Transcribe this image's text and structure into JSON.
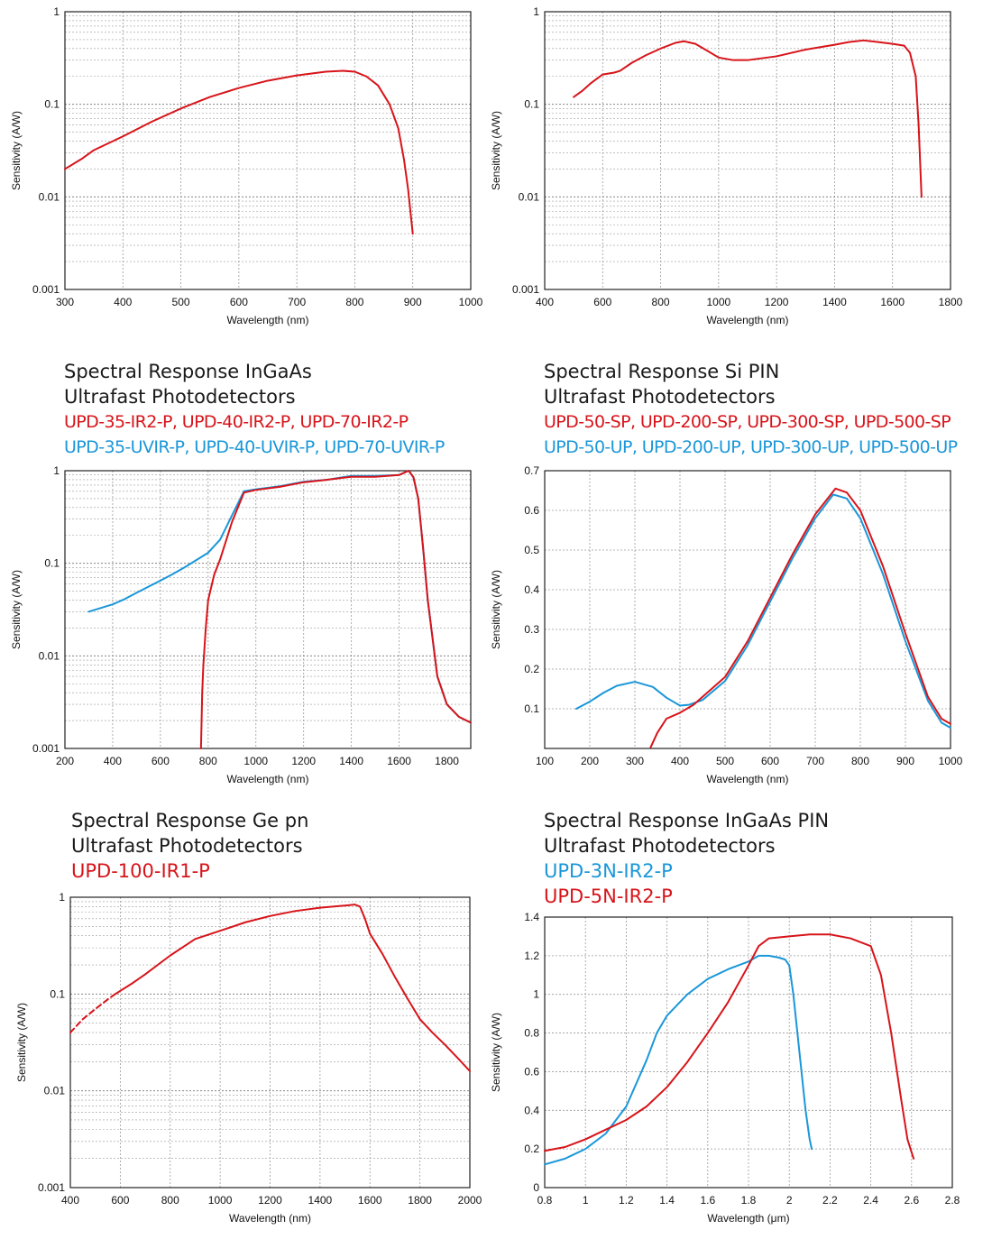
{
  "colors": {
    "red": "#d7141a",
    "blue": "#1a97d8",
    "axis": "#222222",
    "grid": "#9a9a9a"
  },
  "titles": {
    "c3": {
      "line1": "Spectral Response InGaAs",
      "line2": "Ultrafast Photodetectors",
      "red": "UPD-35-IR2-P, UPD-40-IR2-P, UPD-70-IR2-P",
      "blue": "UPD-35-UVIR-P, UPD-40-UVIR-P, UPD-70-UVIR-P"
    },
    "c4": {
      "line1": "Spectral Response Si PIN",
      "line2": "Ultrafast Photodetectors",
      "red": "UPD-50-SP, UPD-200-SP, UPD-300-SP, UPD-500-SP",
      "blue": "UPD-50-UP, UPD-200-UP, UPD-300-UP, UPD-500-UP"
    },
    "c5": {
      "line1": "Spectral Response Ge pn",
      "line2": "Ultrafast Photodetectors",
      "red": "UPD-100-IR1-P"
    },
    "c6": {
      "line1": "Spectral Response InGaAs PIN",
      "line2": "Ultrafast Photodetectors",
      "blue": "UPD-3N-IR2-P",
      "red": "UPD-5N-IR2-P"
    }
  },
  "chart_data": [
    {
      "id": "c1",
      "type": "line",
      "log_y": true,
      "title": "",
      "xlabel": "Wavelength (nm)",
      "ylabel": "Sensitivity (A/W)",
      "xlim": [
        300,
        1000
      ],
      "ylim": [
        0.001,
        1
      ],
      "xticks": [
        300,
        400,
        500,
        600,
        700,
        800,
        900,
        1000
      ],
      "xtick_labels": [
        "300",
        "400",
        "500",
        "600",
        "700",
        "800",
        "900",
        "1000"
      ],
      "yticks": [
        0.001,
        0.01,
        0.1,
        1
      ],
      "ytick_labels": [
        "0.001",
        "0.01",
        "0.1",
        "1"
      ],
      "series": [
        {
          "name": "red",
          "color": "red",
          "x": [
            300,
            330,
            350,
            400,
            450,
            500,
            550,
            600,
            650,
            700,
            750,
            780,
            800,
            820,
            840,
            860,
            875,
            885,
            892,
            897,
            900
          ],
          "y": [
            0.02,
            0.026,
            0.032,
            0.045,
            0.065,
            0.09,
            0.12,
            0.15,
            0.18,
            0.205,
            0.225,
            0.23,
            0.225,
            0.2,
            0.16,
            0.1,
            0.055,
            0.025,
            0.012,
            0.006,
            0.004
          ]
        }
      ]
    },
    {
      "id": "c2",
      "type": "line",
      "log_y": true,
      "title": "",
      "xlabel": "Wavelength (nm)",
      "ylabel": "Sensitivity (A/W)",
      "xlim": [
        400,
        1800
      ],
      "ylim": [
        0.001,
        1
      ],
      "xticks": [
        400,
        600,
        800,
        1000,
        1200,
        1400,
        1600,
        1800
      ],
      "xtick_labels": [
        "400",
        "600",
        "800",
        "1000",
        "1200",
        "1400",
        "1600",
        "1800"
      ],
      "yticks": [
        0.001,
        0.01,
        0.1,
        1
      ],
      "ytick_labels": [
        "0.001",
        "0.01",
        "0.1",
        "1"
      ],
      "series": [
        {
          "name": "red",
          "color": "red",
          "x": [
            500,
            530,
            560,
            600,
            640,
            660,
            700,
            750,
            800,
            850,
            880,
            920,
            960,
            1000,
            1050,
            1100,
            1200,
            1300,
            1400,
            1450,
            1500,
            1550,
            1600,
            1640,
            1660,
            1680,
            1690,
            1700
          ],
          "y": [
            0.12,
            0.14,
            0.17,
            0.21,
            0.22,
            0.23,
            0.28,
            0.34,
            0.4,
            0.46,
            0.48,
            0.45,
            0.38,
            0.32,
            0.3,
            0.3,
            0.33,
            0.39,
            0.44,
            0.47,
            0.49,
            0.47,
            0.45,
            0.43,
            0.36,
            0.2,
            0.06,
            0.01
          ]
        }
      ]
    },
    {
      "id": "c3",
      "type": "line",
      "log_y": true,
      "title": "",
      "xlabel": "Wavelength (nm)",
      "ylabel": "Sensitivity (A/W)",
      "xlim": [
        200,
        1900
      ],
      "ylim": [
        0.001,
        1
      ],
      "xticks": [
        200,
        400,
        600,
        800,
        1000,
        1200,
        1400,
        1600,
        1800
      ],
      "xtick_labels": [
        "200",
        "400",
        "600",
        "800",
        "1000",
        "1200",
        "1400",
        "1600",
        "1800"
      ],
      "yticks": [
        0.001,
        0.01,
        0.1,
        1
      ],
      "ytick_labels": [
        "0.001",
        "0.01",
        "0.1",
        "1"
      ],
      "series": [
        {
          "name": "UVIR",
          "color": "blue",
          "x": [
            300,
            400,
            450,
            500,
            600,
            650,
            700,
            800,
            850,
            900,
            950,
            1000,
            1100,
            1200,
            1300,
            1400,
            1500,
            1600,
            1640,
            1660,
            1680,
            1700,
            1720,
            1760,
            1800,
            1850,
            1900
          ],
          "y": [
            0.03,
            0.036,
            0.041,
            0.048,
            0.065,
            0.076,
            0.09,
            0.13,
            0.18,
            0.33,
            0.6,
            0.63,
            0.68,
            0.76,
            0.8,
            0.88,
            0.88,
            0.9,
            1.0,
            0.85,
            0.5,
            0.15,
            0.04,
            0.006,
            0.003,
            0.0022,
            0.0019
          ]
        },
        {
          "name": "IR2",
          "color": "red",
          "x": [
            770,
            775,
            780,
            790,
            800,
            825,
            850,
            900,
            950,
            1000,
            1100,
            1200,
            1300,
            1400,
            1500,
            1600,
            1640,
            1660,
            1680,
            1700,
            1720,
            1760,
            1800,
            1850,
            1900
          ],
          "y": [
            0.001,
            0.004,
            0.008,
            0.02,
            0.04,
            0.075,
            0.11,
            0.28,
            0.58,
            0.62,
            0.67,
            0.75,
            0.8,
            0.86,
            0.86,
            0.9,
            1.0,
            0.85,
            0.5,
            0.15,
            0.04,
            0.006,
            0.003,
            0.0022,
            0.0019
          ]
        }
      ]
    },
    {
      "id": "c4",
      "type": "line",
      "log_y": false,
      "title": "",
      "xlabel": "Wavelength (nm)",
      "ylabel": "Sensitivity (A/W)",
      "xlim": [
        100,
        1000
      ],
      "ylim": [
        0,
        0.7
      ],
      "xticks": [
        100,
        200,
        300,
        400,
        500,
        600,
        700,
        800,
        900,
        1000
      ],
      "xtick_labels": [
        "100",
        "200",
        "300",
        "400",
        "500",
        "600",
        "700",
        "800",
        "900",
        "1000"
      ],
      "yticks": [
        0.1,
        0.2,
        0.3,
        0.4,
        0.5,
        0.6,
        0.7
      ],
      "ytick_labels": [
        "0.1",
        "0.2",
        "0.3",
        "0.4",
        "0.5",
        "0.6",
        "0.7"
      ],
      "series": [
        {
          "name": "UP",
          "color": "blue",
          "x": [
            170,
            200,
            230,
            260,
            300,
            340,
            370,
            400,
            420,
            450,
            500,
            550,
            600,
            650,
            700,
            740,
            770,
            800,
            850,
            900,
            950,
            980,
            1000
          ],
          "y": [
            0.1,
            0.118,
            0.14,
            0.158,
            0.168,
            0.155,
            0.128,
            0.108,
            0.11,
            0.122,
            0.17,
            0.26,
            0.37,
            0.48,
            0.58,
            0.64,
            0.63,
            0.58,
            0.44,
            0.27,
            0.12,
            0.065,
            0.052
          ]
        },
        {
          "name": "SP",
          "color": "red",
          "x": [
            335,
            350,
            370,
            400,
            430,
            450,
            500,
            550,
            600,
            650,
            700,
            745,
            770,
            800,
            850,
            900,
            950,
            980,
            1000
          ],
          "y": [
            0.003,
            0.04,
            0.075,
            0.09,
            0.11,
            0.13,
            0.18,
            0.27,
            0.38,
            0.49,
            0.59,
            0.655,
            0.645,
            0.6,
            0.46,
            0.29,
            0.13,
            0.075,
            0.062
          ]
        }
      ]
    },
    {
      "id": "c5",
      "type": "line",
      "log_y": true,
      "title": "",
      "xlabel": "Wavelength (nm)",
      "ylabel": "Sensitivity (A/W)",
      "xlim": [
        400,
        2000
      ],
      "ylim": [
        0.001,
        1
      ],
      "xticks": [
        400,
        600,
        800,
        1000,
        1200,
        1400,
        1600,
        1800,
        2000
      ],
      "xtick_labels": [
        "400",
        "600",
        "800",
        "1000",
        "1200",
        "1400",
        "1600",
        "1800",
        "2000"
      ],
      "yticks": [
        0.001,
        0.01,
        0.1,
        1
      ],
      "ytick_labels": [
        "0.001",
        "0.01",
        "0.1",
        "1"
      ],
      "series": [
        {
          "name": "estimated",
          "color": "red",
          "dashed": true,
          "x": [
            400,
            450,
            500,
            550,
            580
          ],
          "y": [
            0.04,
            0.055,
            0.07,
            0.088,
            0.1
          ]
        },
        {
          "name": "UPD-100-IR1-P",
          "color": "red",
          "x": [
            580,
            650,
            700,
            800,
            900,
            1000,
            1100,
            1200,
            1300,
            1400,
            1500,
            1540,
            1560,
            1580,
            1600,
            1650,
            1700,
            1750,
            1800,
            1850,
            1900,
            1950,
            2000
          ],
          "y": [
            0.1,
            0.13,
            0.16,
            0.25,
            0.37,
            0.45,
            0.55,
            0.64,
            0.72,
            0.78,
            0.82,
            0.84,
            0.8,
            0.6,
            0.42,
            0.26,
            0.15,
            0.09,
            0.055,
            0.04,
            0.03,
            0.022,
            0.016
          ]
        }
      ]
    },
    {
      "id": "c6",
      "type": "line",
      "log_y": false,
      "title": "",
      "xlabel": "Wavelength (μm)",
      "ylabel": "Sensitivity (A/W)",
      "xlim": [
        0.8,
        2.8
      ],
      "ylim": [
        0,
        1.4
      ],
      "xticks": [
        0.8,
        1,
        1.2,
        1.4,
        1.6,
        1.8,
        2,
        2.2,
        2.4,
        2.6,
        2.8
      ],
      "xtick_labels": [
        "0.8",
        "1",
        "1.2",
        "1.4",
        "1.6",
        "1.8",
        "2",
        "2.2",
        "2.4",
        "2.6",
        "2.8"
      ],
      "yticks": [
        0,
        0.2,
        0.4,
        0.6,
        0.8,
        1,
        1.2,
        1.4
      ],
      "ytick_labels": [
        "0",
        "0.2",
        "0.4",
        "0.6",
        "0.8",
        "1",
        "1.2",
        "1.4"
      ],
      "series": [
        {
          "name": "UPD-3N-IR2-P",
          "color": "blue",
          "x": [
            0.8,
            0.9,
            1.0,
            1.1,
            1.2,
            1.3,
            1.35,
            1.4,
            1.5,
            1.6,
            1.7,
            1.8,
            1.85,
            1.9,
            1.95,
            1.98,
            2.0,
            2.02,
            2.05,
            2.08,
            2.1,
            2.11
          ],
          "y": [
            0.12,
            0.15,
            0.2,
            0.28,
            0.42,
            0.66,
            0.8,
            0.89,
            1.0,
            1.08,
            1.13,
            1.17,
            1.2,
            1.2,
            1.19,
            1.18,
            1.15,
            1.0,
            0.7,
            0.4,
            0.25,
            0.2
          ]
        },
        {
          "name": "UPD-5N-IR2-P",
          "color": "red",
          "x": [
            0.8,
            0.9,
            1.0,
            1.1,
            1.2,
            1.3,
            1.4,
            1.5,
            1.6,
            1.7,
            1.8,
            1.85,
            1.9,
            2.0,
            2.1,
            2.2,
            2.3,
            2.4,
            2.45,
            2.5,
            2.55,
            2.58,
            2.61
          ],
          "y": [
            0.19,
            0.21,
            0.25,
            0.3,
            0.35,
            0.42,
            0.52,
            0.65,
            0.8,
            0.96,
            1.15,
            1.25,
            1.29,
            1.3,
            1.31,
            1.31,
            1.29,
            1.25,
            1.1,
            0.8,
            0.45,
            0.25,
            0.15
          ]
        }
      ]
    }
  ]
}
